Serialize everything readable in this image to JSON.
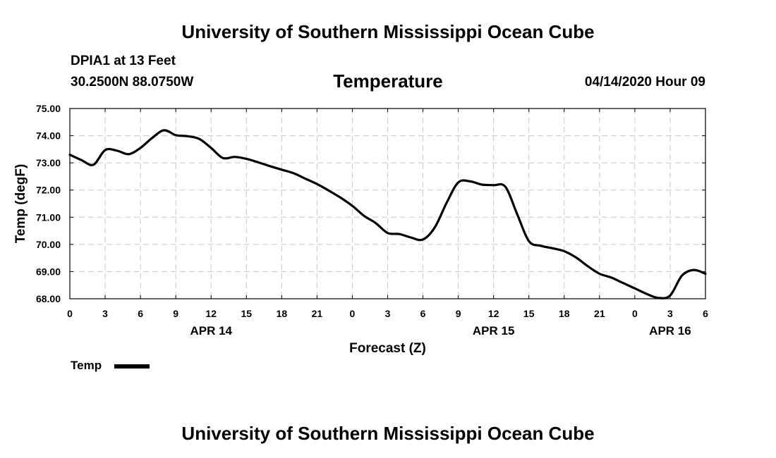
{
  "header": {
    "title": "University of Southern Mississippi Ocean Cube",
    "station": "DPIA1 at 13 Feet",
    "coords": "30.2500N 88.0750W",
    "parameter": "Temperature",
    "datetime": "04/14/2020 Hour 09"
  },
  "footer": {
    "title": "University of Southern Mississippi Ocean Cube"
  },
  "legend": {
    "label": "Temp",
    "color": "#000000"
  },
  "chart_data": {
    "type": "line",
    "title": "Temperature",
    "xlabel": "Forecast (Z)",
    "ylabel": "Temp (degF)",
    "xlim": [
      0,
      54
    ],
    "ylim": [
      68.0,
      75.0
    ],
    "grid": true,
    "x_tick_values": [
      0,
      3,
      6,
      9,
      12,
      15,
      18,
      21,
      24,
      27,
      30,
      33,
      36,
      39,
      42,
      45,
      48,
      51,
      54
    ],
    "x_tick_labels": [
      "0",
      "3",
      "6",
      "9",
      "12",
      "15",
      "18",
      "21",
      "0",
      "3",
      "6",
      "9",
      "12",
      "15",
      "18",
      "21",
      "0",
      "3",
      "6"
    ],
    "y_tick_values": [
      68,
      69,
      70,
      71,
      72,
      73,
      74,
      75
    ],
    "y_tick_labels": [
      "68.00",
      "69.00",
      "70.00",
      "71.00",
      "72.00",
      "73.00",
      "74.00",
      "75.00"
    ],
    "date_labels": [
      {
        "x": 12,
        "label": "APR 14"
      },
      {
        "x": 36,
        "label": "APR 15"
      },
      {
        "x": 51,
        "label": "APR 16"
      }
    ],
    "series": [
      {
        "name": "Temp",
        "x": [
          0,
          1,
          2,
          3,
          4,
          5,
          6,
          7,
          8,
          9,
          10,
          11,
          12,
          13,
          14,
          15,
          16,
          17,
          18,
          19,
          20,
          21,
          22,
          23,
          24,
          25,
          26,
          27,
          28,
          29,
          30,
          31,
          32,
          33,
          34,
          35,
          36,
          37,
          38,
          39,
          40,
          41,
          42,
          43,
          44,
          45,
          46,
          47,
          48,
          49,
          50,
          51,
          52,
          53,
          54
        ],
        "values": [
          73.3,
          73.1,
          72.93,
          73.47,
          73.45,
          73.32,
          73.55,
          73.92,
          74.2,
          74.02,
          73.98,
          73.88,
          73.55,
          73.18,
          73.22,
          73.15,
          73.02,
          72.88,
          72.75,
          72.62,
          72.42,
          72.22,
          71.98,
          71.72,
          71.42,
          71.05,
          70.78,
          70.42,
          70.38,
          70.25,
          70.18,
          70.62,
          71.52,
          72.28,
          72.32,
          72.2,
          72.18,
          72.12,
          71.12,
          70.12,
          69.95,
          69.86,
          69.75,
          69.52,
          69.2,
          68.92,
          68.78,
          68.58,
          68.38,
          68.18,
          68.03,
          68.12,
          68.85,
          69.06,
          68.92
        ]
      }
    ]
  }
}
